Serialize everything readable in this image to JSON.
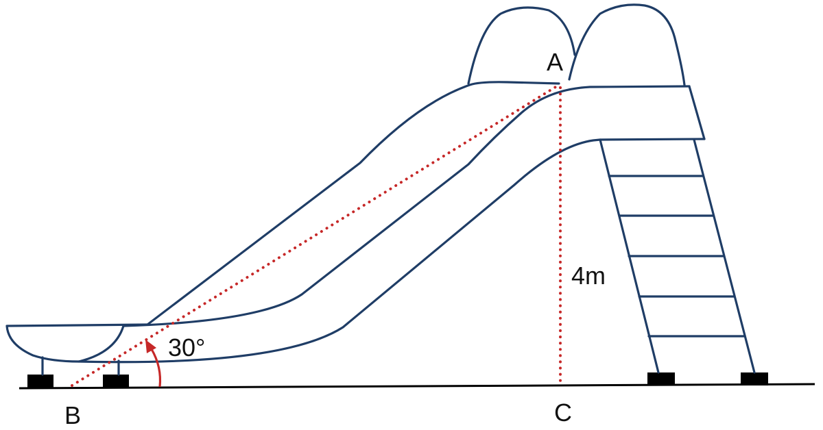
{
  "points": {
    "a": "A",
    "b": "B",
    "c": "C"
  },
  "labels": {
    "height": "4m",
    "angle": "30°"
  },
  "colors": {
    "outline": "#1f3d66",
    "measure": "#c62828",
    "ground": "#000000"
  }
}
